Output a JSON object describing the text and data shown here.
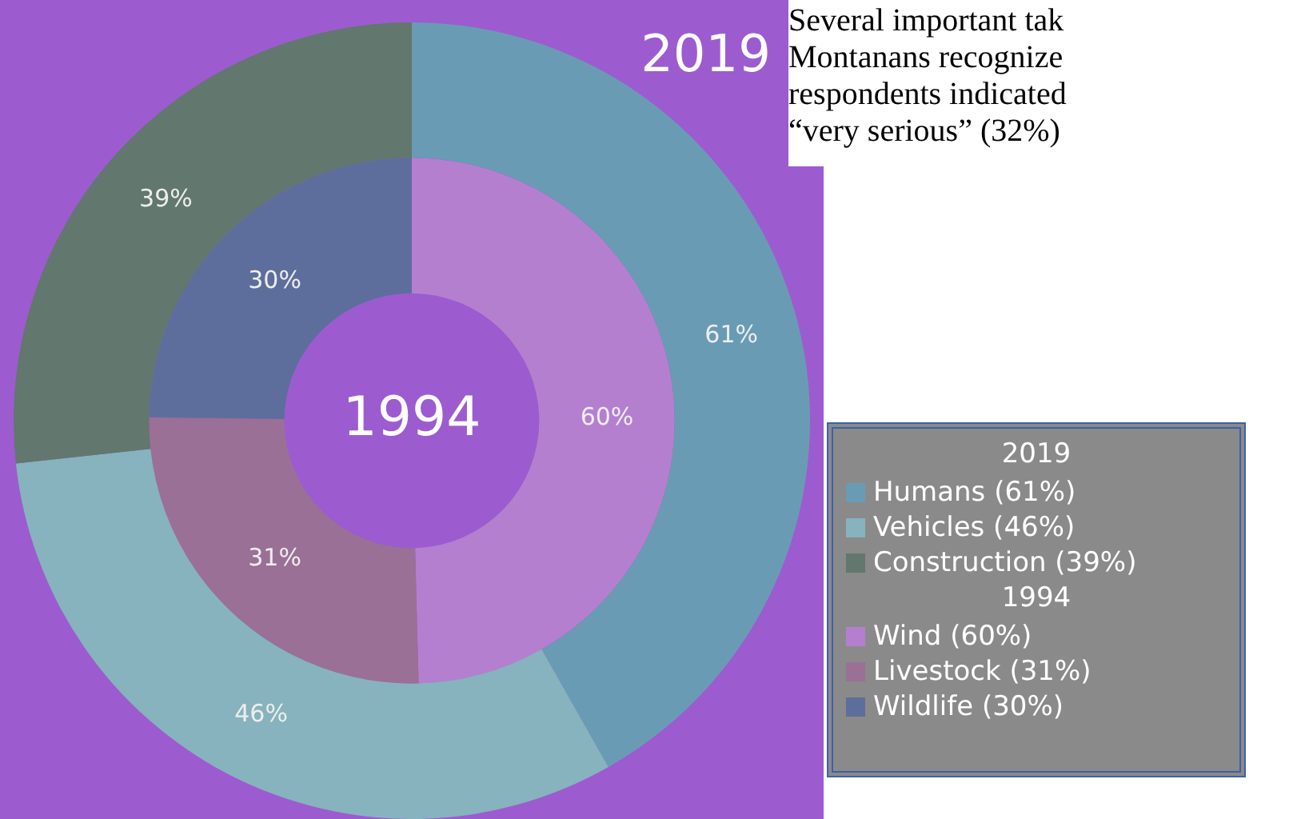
{
  "chart_data": {
    "type": "donut",
    "legend": "right",
    "categories": [
      "Humans (61%)",
      "Vehicles (46%)",
      "Construction (39%)",
      "Wind (60%)",
      "Livestock (31%)",
      "Wildlife (30%)"
    ],
    "colors": [
      "#6a9bb5",
      "#86b3bd",
      "#62776e",
      "#b57fd0",
      "#9a7096",
      "#5e6e9c"
    ],
    "series": [
      {
        "name": "2019",
        "values": [
          61,
          46,
          39,
          null,
          null,
          null
        ],
        "value_labels": [
          "61%",
          "46%",
          "39%",
          null,
          null,
          null
        ]
      },
      {
        "name": "1994",
        "values": [
          null,
          null,
          null,
          60,
          31,
          30
        ],
        "value_labels": [
          null,
          null,
          null,
          "60%",
          "31%",
          "30%"
        ]
      }
    ],
    "annotations": [
      "Several important tak",
      "Montanans recognize",
      "respondents indicated",
      "“very serious” (32%)"
    ]
  }
}
